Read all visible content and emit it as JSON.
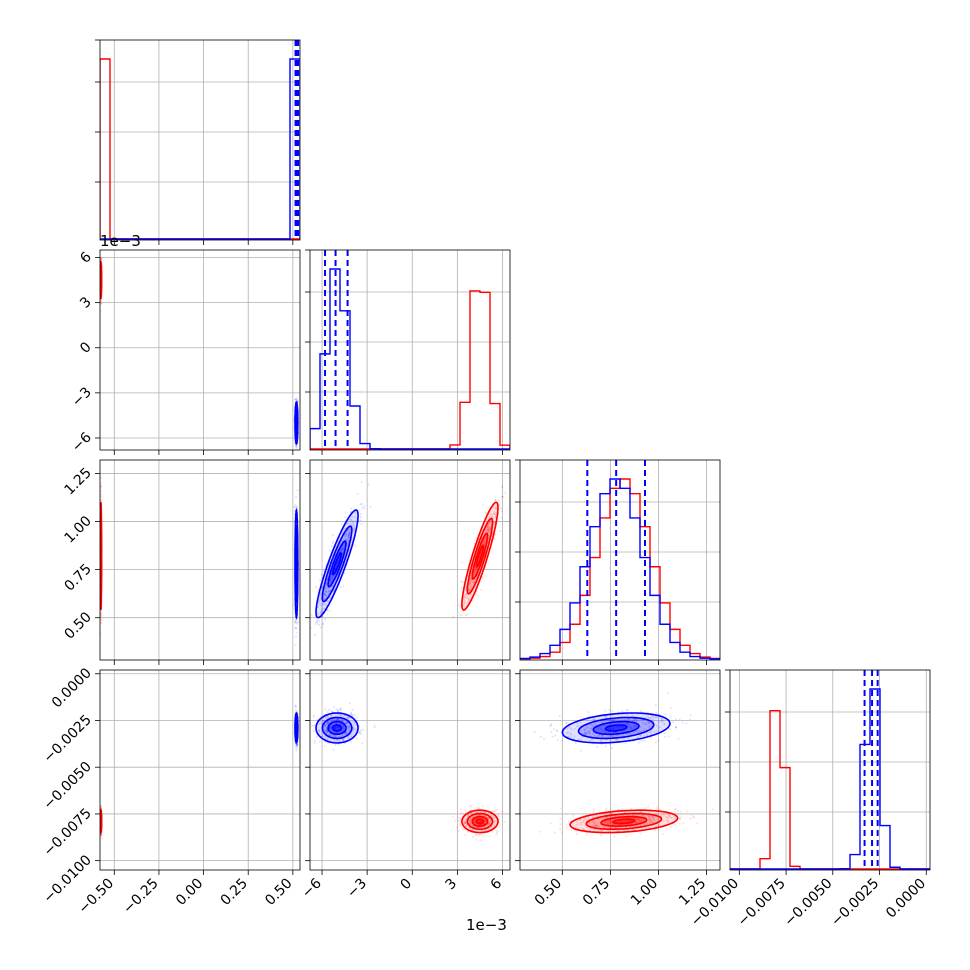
{
  "colors": {
    "series_a": "#ff0000",
    "series_b": "#0000ff",
    "grid": "#b0b0b0",
    "frame": "#000000"
  },
  "axis_offset_labels": {
    "param2_y": "1e−3",
    "param2_x": "1e−3"
  },
  "chart_data": {
    "type": "corner",
    "description_free": true,
    "grid": true,
    "parameters": [
      {
        "range": [
          -0.58,
          0.54
        ],
        "ticks": [
          -0.5,
          -0.25,
          0.0,
          0.25,
          0.5
        ],
        "tick_labels": [
          "−0.50",
          "−0.25",
          "0.00",
          "0.25",
          "0.50"
        ]
      },
      {
        "range": [
          -0.0068,
          0.0065
        ],
        "ticks": [
          -0.006,
          -0.003,
          0.0,
          0.003,
          0.006
        ],
        "tick_labels": [
          "−6",
          "−3",
          "0",
          "3",
          "6"
        ]
      },
      {
        "range": [
          0.28,
          1.32
        ],
        "ticks": [
          0.5,
          0.75,
          1.0,
          1.25
        ],
        "tick_labels": [
          "0.50",
          "0.75",
          "1.00",
          "1.25"
        ]
      },
      {
        "range": [
          -0.0105,
          0.0002
        ],
        "ticks": [
          -0.01,
          -0.0075,
          -0.005,
          -0.0025,
          0.0
        ],
        "tick_labels": [
          "−0.0100",
          "−0.0075",
          "−0.0050",
          "−0.0025",
          "0.0000"
        ]
      }
    ],
    "series": [
      {
        "color": "#ff0000",
        "mean": [
          -0.575,
          0.0045,
          0.82,
          -0.0079
        ],
        "sd": [
          0.002,
          0.0006,
          0.14,
          0.0003
        ],
        "corr_2_3": 0.0,
        "corr_1_2": 0.9,
        "corr_2_3b": 0.3,
        "quantiles": null
      },
      {
        "color": "#0000ff",
        "mean": [
          0.52,
          -0.005,
          0.78,
          -0.0029
        ],
        "sd": [
          0.004,
          0.0007,
          0.14,
          0.0004
        ],
        "corr_1_2": 0.9,
        "corr_2_3b": 0.3,
        "quantiles": [
          [
            0.515,
            0.518,
            0.521,
            0.524,
            0.527,
            0.53
          ],
          [
            -0.0058,
            -0.0051,
            -0.0043
          ],
          [
            0.63,
            0.78,
            0.93
          ],
          [
            -0.0033,
            -0.0029,
            -0.0026
          ]
        ]
      }
    ]
  }
}
